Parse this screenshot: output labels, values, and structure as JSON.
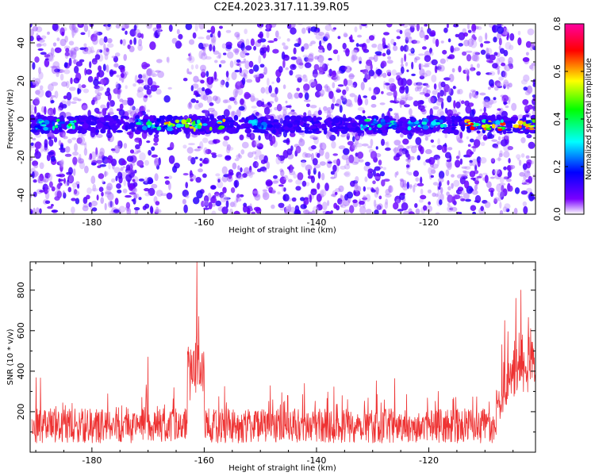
{
  "page": {
    "title": "C2E4.2023.317.11.39.R05"
  },
  "chart_data": [
    {
      "type": "heatmap",
      "title": "C2E4.2023.317.11.39.R05",
      "xlabel": "Height of straight line (km)",
      "ylabel": "Frequency (Hz)",
      "xlim": [
        -191,
        -101
      ],
      "ylim": [
        -50,
        50
      ],
      "x_ticks": [
        -180,
        -160,
        -140,
        -120
      ],
      "y_ticks": [
        -40,
        -20,
        0,
        20,
        40
      ],
      "colorbar": {
        "label": "Normalized spectral amplitude",
        "range": [
          0,
          0.8
        ],
        "ticks": [
          0.0,
          0.2,
          0.4,
          0.6,
          0.8
        ],
        "colors": [
          "#ffffff",
          "#6a00ff",
          "#0000ff",
          "#00ffff",
          "#00ff00",
          "#ffff00",
          "#ff0000",
          "#ff00a0"
        ]
      },
      "band": {
        "frequency_hz": -3,
        "bright_segments": [
          {
            "x": [
              -190,
              -183
            ],
            "peak": 0.45
          },
          {
            "x": [
              -172,
              -168
            ],
            "peak": 0.4
          },
          {
            "x": [
              -167,
              -156
            ],
            "peak": 0.65
          },
          {
            "x": [
              -152,
              -148
            ],
            "peak": 0.3
          },
          {
            "x": [
              -132,
              -126
            ],
            "peak": 0.4
          },
          {
            "x": [
              -124,
              -117
            ],
            "peak": 0.35
          },
          {
            "x": [
              -114,
              -101
            ],
            "peak": 0.78
          }
        ]
      }
    },
    {
      "type": "line",
      "xlabel": "Height of straight line (km)",
      "ylabel": "SNR (10 * v/v)",
      "xlim": [
        -191,
        -101
      ],
      "ylim": [
        0,
        940
      ],
      "x_ticks": [
        -180,
        -160,
        -140,
        -120
      ],
      "y_ticks": [
        200,
        400,
        600,
        800
      ],
      "color": "#ee3333",
      "baseline": 130,
      "spikes": [
        {
          "x": -161.3,
          "y": 940
        },
        {
          "x": -161.0,
          "y": 670
        },
        {
          "x": -170.0,
          "y": 470
        },
        {
          "x": -103.6,
          "y": 800
        },
        {
          "x": -104.5,
          "y": 760
        },
        {
          "x": -106.5,
          "y": 650
        }
      ]
    }
  ]
}
